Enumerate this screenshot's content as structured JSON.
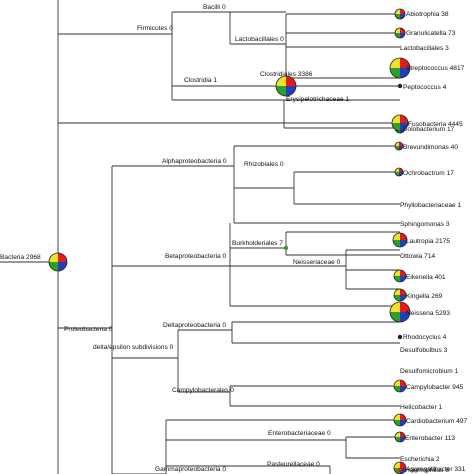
{
  "tree": {
    "root": {
      "label": "Bacteria 2968"
    },
    "taxa": {
      "bacilli": "Bacilli 0",
      "firmicutes": "Firmicutes 0",
      "lactobacillales": "Lactobacillales 0",
      "abiotrophia": "Abiotrophia 38",
      "granulicatella": "Granulicatella 73",
      "lactobacillales_leaf": "Lactobacillales 3",
      "streptococcus": "Streptococcus 4817",
      "clostridia": "Clostridia 1",
      "clostridiales": "Clostridiales 3386",
      "peptococcus": "Peptococcus 4",
      "erysipelotrichaceae": "Erysipelotrichaceae 1",
      "solobacterium": "Solobacterium 17",
      "fusobacteria": "Fusobacteria 4445",
      "brevundimonas": "Brevundimonas 40",
      "alphaproteobacteria": "Alphaproteobacteria 0",
      "rhizobiales": "Rhizobiales 0",
      "ochrobactrum": "Ochrobactrum 17",
      "phyllobacteriaceae": "Phyllobacteriaceae 1",
      "sphingomonas": "Sphingomonas 3",
      "burkholderiales": "Burkholderiales 7",
      "lautropia": "Lautropia 2175",
      "ottowia": "Ottowia 714",
      "eikenella": "Eikenella 401",
      "betaproteobacteria": "Betaproteobacteria 0",
      "neisseriaceae": "Neisseriaceae 0",
      "kingella": "Kingella 269",
      "neisseria": "Neisseria 5293",
      "rhodocyclus": "Rhodocyclus 4",
      "desulfobulbus": "Desulfobulbus 3",
      "proteobacteria": "Proteobacteria 0",
      "deltaproteobacteria": "Deltaproteobacteria 0",
      "delta_epsilon": "delta/epsilon subdivisions 0",
      "desulfomicrobium": "Desulfomicrobium 1",
      "campylobacterales": "Campylobacterales 0",
      "campylobacter": "Campylobacter 945",
      "helicobacter": "Helicobacter 1",
      "cardiobacterium": "Cardiobacterium 497",
      "enterobacteriaceae": "Enterobacteriaceae 0",
      "enterobacter": "Enterobacter 113",
      "escherichia": "Escherichia 2",
      "gammaproteobacteria": "Gammaproteobacteria 0",
      "aggregatibacter": "Aggregatibacter 331",
      "pasteurellaceae": "Pasteurellaceae 0",
      "haemophilus": "Haemophilus 8"
    },
    "pie_colors": [
      "#e41a1c",
      "#1f3fbf",
      "#2ca02c",
      "#f0e22a"
    ]
  }
}
